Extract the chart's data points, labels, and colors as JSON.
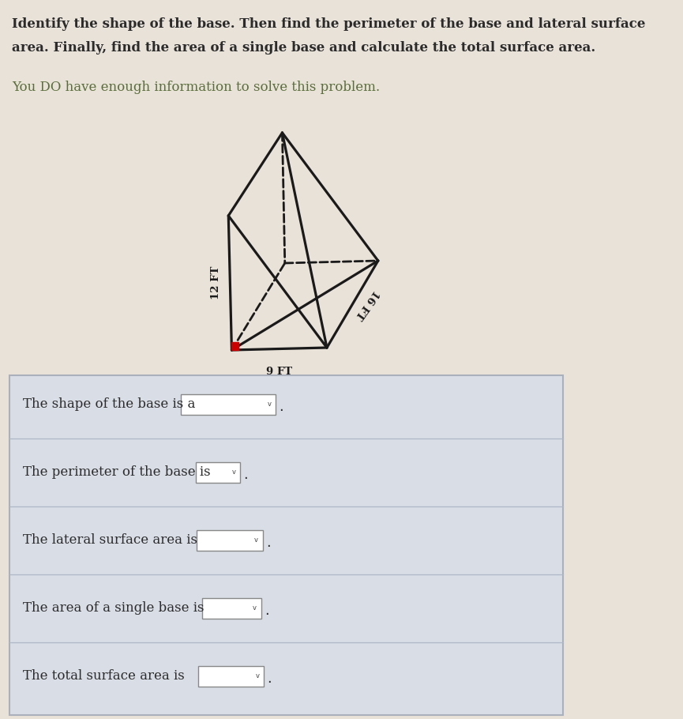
{
  "title_line1": "Identify the shape of the base. Then find the perimeter of the base and lateral surface",
  "title_line2": "area. Finally, find the area of a single base and calculate the total surface area.",
  "subtitle": "You DO have enough information to solve this problem.",
  "bg_color": "#e8e2d8",
  "text_color": "#2b2b2b",
  "subtitle_color": "#5a6e3a",
  "shape_label_9ft": "9 FT",
  "shape_label_12ft": "12 FT",
  "shape_label_16ft": "16 FT",
  "questions": [
    "The shape of the base is a",
    "The perimeter of the base is",
    "The lateral surface area is",
    "The area of a single base is",
    "The total surface area is"
  ],
  "box_bg": "#d8dde6",
  "box_border": "#aab0bc",
  "line_color": "#1a1a1a",
  "red_corner": "#cc0000",
  "dropdown_widths": [
    1.55,
    0.72,
    1.05,
    0.95,
    1.05
  ]
}
